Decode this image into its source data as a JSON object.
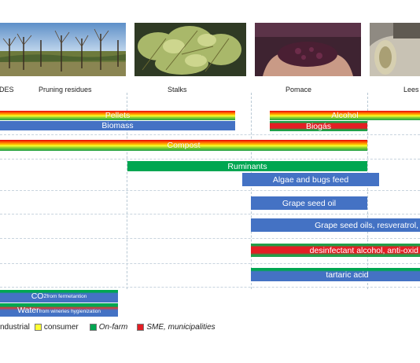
{
  "columns": [
    "DES",
    "Pruning residues",
    "Stalks",
    "Pomace",
    "Lees"
  ],
  "rows": {
    "pellets": "Pellets",
    "alcohol": "Alcohol",
    "biomass": "Biomass",
    "biogas": "Biogás",
    "compost": "Compost",
    "ruminants": "Ruminants",
    "algae": "Algae and bugs feed",
    "grape_seed_oil": "Grape seed oil",
    "grape_seed_oils": "Grape seed oils, resveratrol,",
    "desinfectant": "desinfectant alcohol, anti-oxid",
    "tartaric": "tartaric  acid",
    "co2": "CO",
    "co2_sub": "2",
    "co2_suffix": " from fermetantion",
    "water": "Water",
    "water_suffix": " from wineries hygienization"
  },
  "legend": {
    "industrial": "ndustrial",
    "consumer": "consumer",
    "onfarm": "On-farm",
    "sme": "SME, municipalities"
  },
  "colors": {
    "industrial": "#4472c4",
    "consumer": "#ffff33",
    "onfarm": "#00a651",
    "sme": "#e31e24"
  }
}
